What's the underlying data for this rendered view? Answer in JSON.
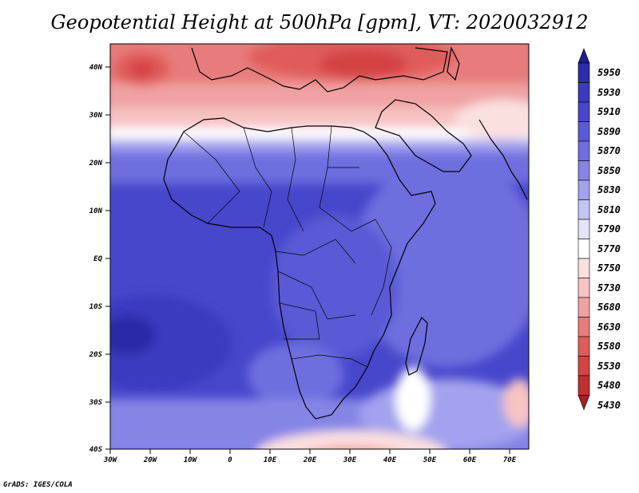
{
  "title": "Geopotential Height at 500hPa [gpm], VT: 2020032912",
  "credit": "GrADS: IGES/COLA",
  "lat_labels": [
    "40N",
    "30N",
    "20N",
    "10N",
    "EQ",
    "10S",
    "20S",
    "30S",
    "40S"
  ],
  "lon_labels": [
    "30W",
    "20W",
    "10W",
    "0",
    "10E",
    "20E",
    "30E",
    "40E",
    "50E",
    "60E",
    "70E"
  ],
  "colorbar": {
    "levels": [
      "5950",
      "5930",
      "5910",
      "5890",
      "5870",
      "5850",
      "5830",
      "5810",
      "5790",
      "5770",
      "5750",
      "5730",
      "5680",
      "5630",
      "5580",
      "5530",
      "5480",
      "5430"
    ],
    "colors": [
      "#1e1e8c",
      "#2c2ca8",
      "#3a3ac0",
      "#4747cc",
      "#5a5ad6",
      "#6e6edf",
      "#8585e6",
      "#a2a2ee",
      "#c4c4f5",
      "#e3e3fa",
      "#ffffff",
      "#fbe0e0",
      "#f7c3c3",
      "#f0a2a2",
      "#e87c7c",
      "#e05c5c",
      "#d44343",
      "#c02f2f",
      "#a81f1f"
    ]
  },
  "chart_data": {
    "type": "heatmap",
    "title": "Geopotential Height at 500hPa [gpm], VT: 2020032912",
    "variable": "500hPa geopotential height",
    "units": "gpm",
    "valid_time": "2020032912",
    "lon_range": [
      -30,
      75
    ],
    "lat_range": [
      -40,
      45
    ],
    "x_ticks": [
      "30W",
      "20W",
      "10W",
      "0",
      "10E",
      "20E",
      "30E",
      "40E",
      "50E",
      "60E",
      "70E"
    ],
    "y_ticks": [
      "40N",
      "30N",
      "20N",
      "10N",
      "EQ",
      "10S",
      "20S",
      "30S",
      "40S"
    ],
    "contour_levels": [
      5430,
      5480,
      5530,
      5580,
      5630,
      5680,
      5730,
      5750,
      5770,
      5790,
      5810,
      5830,
      5850,
      5870,
      5890,
      5910,
      5930,
      5950
    ],
    "features": [
      {
        "name": "low height trough over Mediterranean / Turkey",
        "approx_lon": 30,
        "approx_lat": 40,
        "value_range": "5530-5580"
      },
      {
        "name": "low center over North Atlantic",
        "approx_lon": -24,
        "approx_lat": 40,
        "value_range": "5530-5580"
      },
      {
        "name": "subtropical high over South Atlantic",
        "approx_lon": -28,
        "approx_lat": -20,
        "value_range": "5910-5930"
      },
      {
        "name": "trough south of Madagascar",
        "approx_lon": 46,
        "approx_lat": -33,
        "value_range": "5750-5790"
      },
      {
        "name": "Southern Ocean low heights",
        "approx_lon": 30,
        "approx_lat": -40,
        "value_range": "5630-5730"
      }
    ]
  }
}
